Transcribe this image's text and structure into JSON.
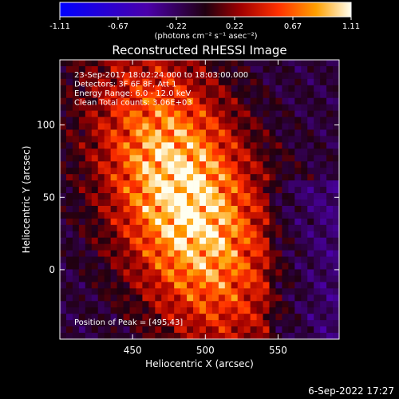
{
  "colorbar": {
    "ticks": [
      "-1.11",
      "-0.67",
      "-0.22",
      "0.22",
      "0.67",
      "1.11"
    ],
    "unit_label": "(photons cm⁻² s⁻¹ asec⁻²)",
    "range": [
      -1.11,
      1.11
    ]
  },
  "chart_data": {
    "type": "heatmap",
    "title": "Reconstructed RHESSI Image",
    "xlabel": "Heliocentric X (arcsec)",
    "ylabel": "Heliocentric Y (arcsec)",
    "xlim": [
      400,
      592
    ],
    "ylim": [
      -48,
      145
    ],
    "x_ticks": [
      450,
      500,
      550
    ],
    "y_ticks": [
      0,
      50,
      100
    ],
    "annotations": [
      "23-Sep-2017 18:02:24.000 to 18:03:00.000",
      "Detectors: 3F 6F 8F, Att 1",
      "Energy Range: 6.0 - 12.0 keV",
      "Clean     Total counts: 3.06E+03"
    ],
    "peak_label": "Position of Peak = [495,43]",
    "peak": {
      "x": 495,
      "y": 43
    },
    "source_center": {
      "x": 486,
      "y": 48
    },
    "colormap": "red-temperature"
  },
  "footer": {
    "timestamp": "6-Sep-2022 17:27"
  }
}
